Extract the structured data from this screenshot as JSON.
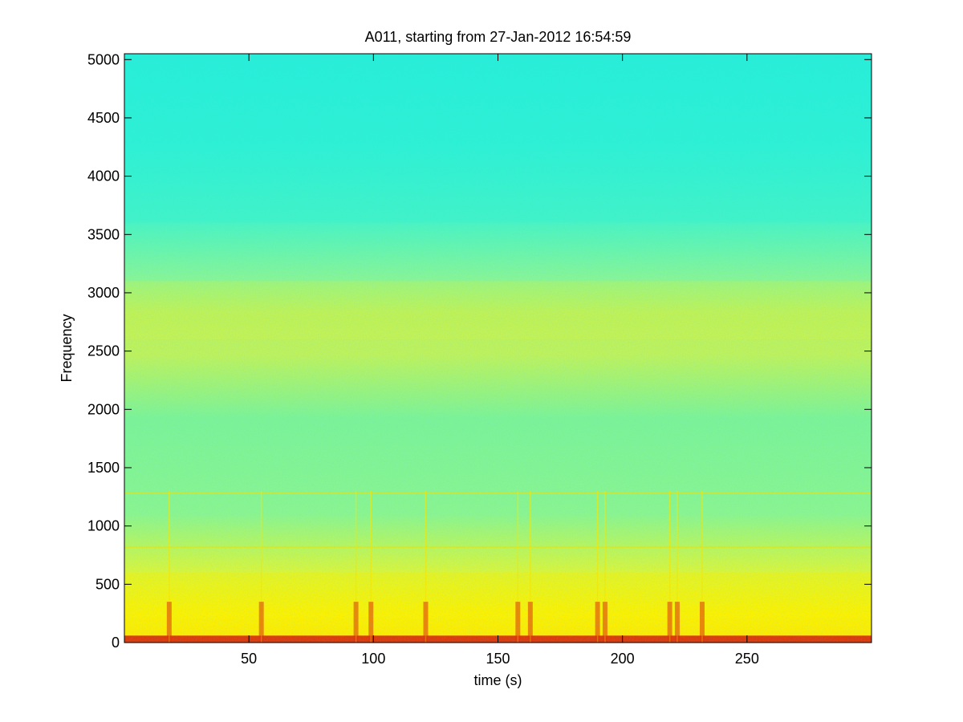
{
  "chart_data": {
    "type": "heatmap",
    "title": "A011, starting from 27-Jan-2012 16:54:59",
    "xlabel": "time (s)",
    "ylabel": "Frequency",
    "xlim": [
      0,
      300
    ],
    "ylim": [
      0,
      5050
    ],
    "x_ticks": [
      50,
      100,
      150,
      200,
      250
    ],
    "y_ticks": [
      0,
      500,
      1000,
      1500,
      2000,
      2500,
      3000,
      3500,
      4000,
      4500,
      5000
    ],
    "grid": false,
    "colormap": "jet",
    "bands": [
      {
        "freq_range": [
          0,
          60
        ],
        "level": "highest",
        "description": "continuous red band near 0 Hz"
      },
      {
        "freq_range": [
          60,
          600
        ],
        "level": "high",
        "description": "yellow low-frequency energy"
      },
      {
        "freq_range": [
          2600,
          3100
        ],
        "level": "elevated",
        "description": "yellow-green band around 2800 Hz"
      },
      {
        "freq_range": [
          3600,
          5050
        ],
        "level": "low",
        "description": "cyan background"
      }
    ],
    "horizontal_lines": [
      820,
      1280
    ],
    "transient_times": [
      18,
      55,
      93,
      99,
      121,
      158,
      163,
      190,
      193,
      219,
      222,
      232
    ]
  }
}
